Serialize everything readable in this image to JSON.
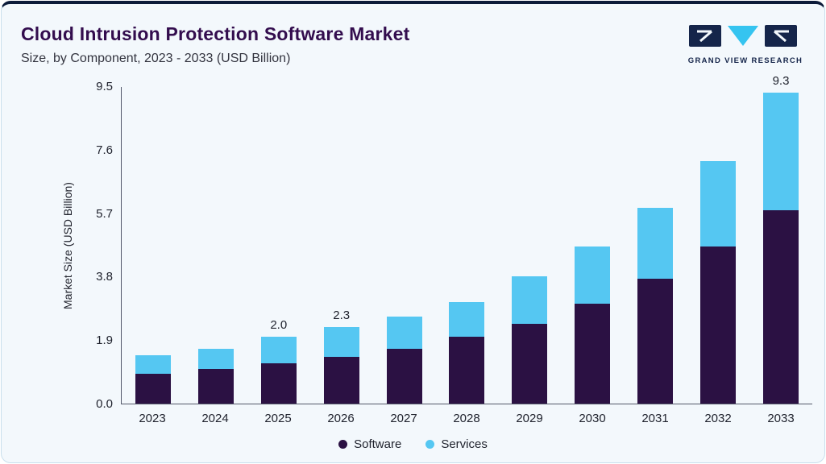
{
  "header": {
    "title": "Cloud Intrusion Protection Software Market",
    "subtitle": "Size, by Component, 2023 - 2033 (USD Billion)",
    "logo_text": "GRAND VIEW RESEARCH"
  },
  "chart_data": {
    "type": "bar",
    "stacked": true,
    "title": "Cloud Intrusion Protection Software Market Size, by Component, 2023 - 2033 (USD Billion)",
    "categories": [
      "2023",
      "2024",
      "2025",
      "2026",
      "2027",
      "2028",
      "2029",
      "2030",
      "2031",
      "2032",
      "2033"
    ],
    "series": [
      {
        "name": "Software",
        "color": "#2b1143",
        "values": [
          0.9,
          1.05,
          1.2,
          1.4,
          1.65,
          2.0,
          2.4,
          3.0,
          3.75,
          4.7,
          5.8
        ]
      },
      {
        "name": "Services",
        "color": "#55c7f2",
        "values": [
          0.55,
          0.6,
          0.8,
          0.9,
          0.95,
          1.05,
          1.4,
          1.7,
          2.1,
          2.55,
          3.5
        ]
      }
    ],
    "bar_labels": [
      "",
      "",
      "2.0",
      "2.3",
      "",
      "",
      "",
      "",
      "",
      "",
      "9.3"
    ],
    "xlabel": "",
    "ylabel": "Market Size (USD Billion)",
    "yticks": [
      "9.5",
      "7.6",
      "5.7",
      "3.8",
      "1.9",
      "0.0"
    ],
    "ylim": [
      0,
      9.5
    ],
    "grid": false,
    "legend_position": "bottom",
    "legend": [
      "Software",
      "Services"
    ],
    "colors": {
      "accent_dark": "#2b1143",
      "accent_blue": "#55c7f2",
      "card_background": "#f3f8fc",
      "top_border": "#0c1b3a",
      "title_color": "#330d4e"
    }
  }
}
